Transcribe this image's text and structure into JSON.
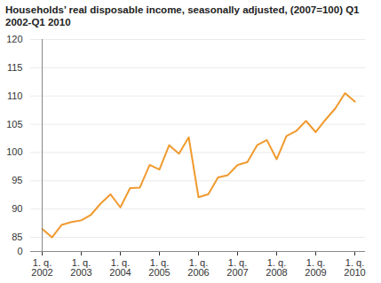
{
  "chart_data": {
    "type": "line",
    "title": "Households’ real disposable income, seasonally adjusted, (2007=100) Q1 2002-Q1 2010",
    "categories": [
      "1. q.\n2002",
      null,
      null,
      null,
      "1. q.\n2003",
      null,
      null,
      null,
      "1. q.\n2004",
      null,
      null,
      null,
      "1. q.\n2005",
      null,
      null,
      null,
      "1. q.\n2006",
      null,
      null,
      null,
      "1. q.\n2007",
      null,
      null,
      null,
      "1. q.\n2008",
      null,
      null,
      null,
      "1. q.\n2009",
      null,
      null,
      null,
      "1. q.\n2010"
    ],
    "values": [
      86.5,
      84.5,
      87.2,
      87.7,
      88.0,
      89.0,
      91.0,
      92.6,
      90.3,
      93.7,
      93.8,
      97.8,
      97.0,
      101.3,
      99.8,
      102.7,
      92.1,
      92.6,
      95.6,
      96.0,
      97.8,
      98.3,
      101.3,
      102.2,
      98.8,
      102.9,
      103.8,
      105.6,
      103.6,
      105.8,
      107.8,
      110.5,
      109.0
    ],
    "color": "#f09a2e",
    "ylim": [
      0,
      120
    ],
    "yticks": [
      0,
      85,
      90,
      95,
      100,
      105,
      110,
      115,
      120
    ],
    "grid": true
  }
}
